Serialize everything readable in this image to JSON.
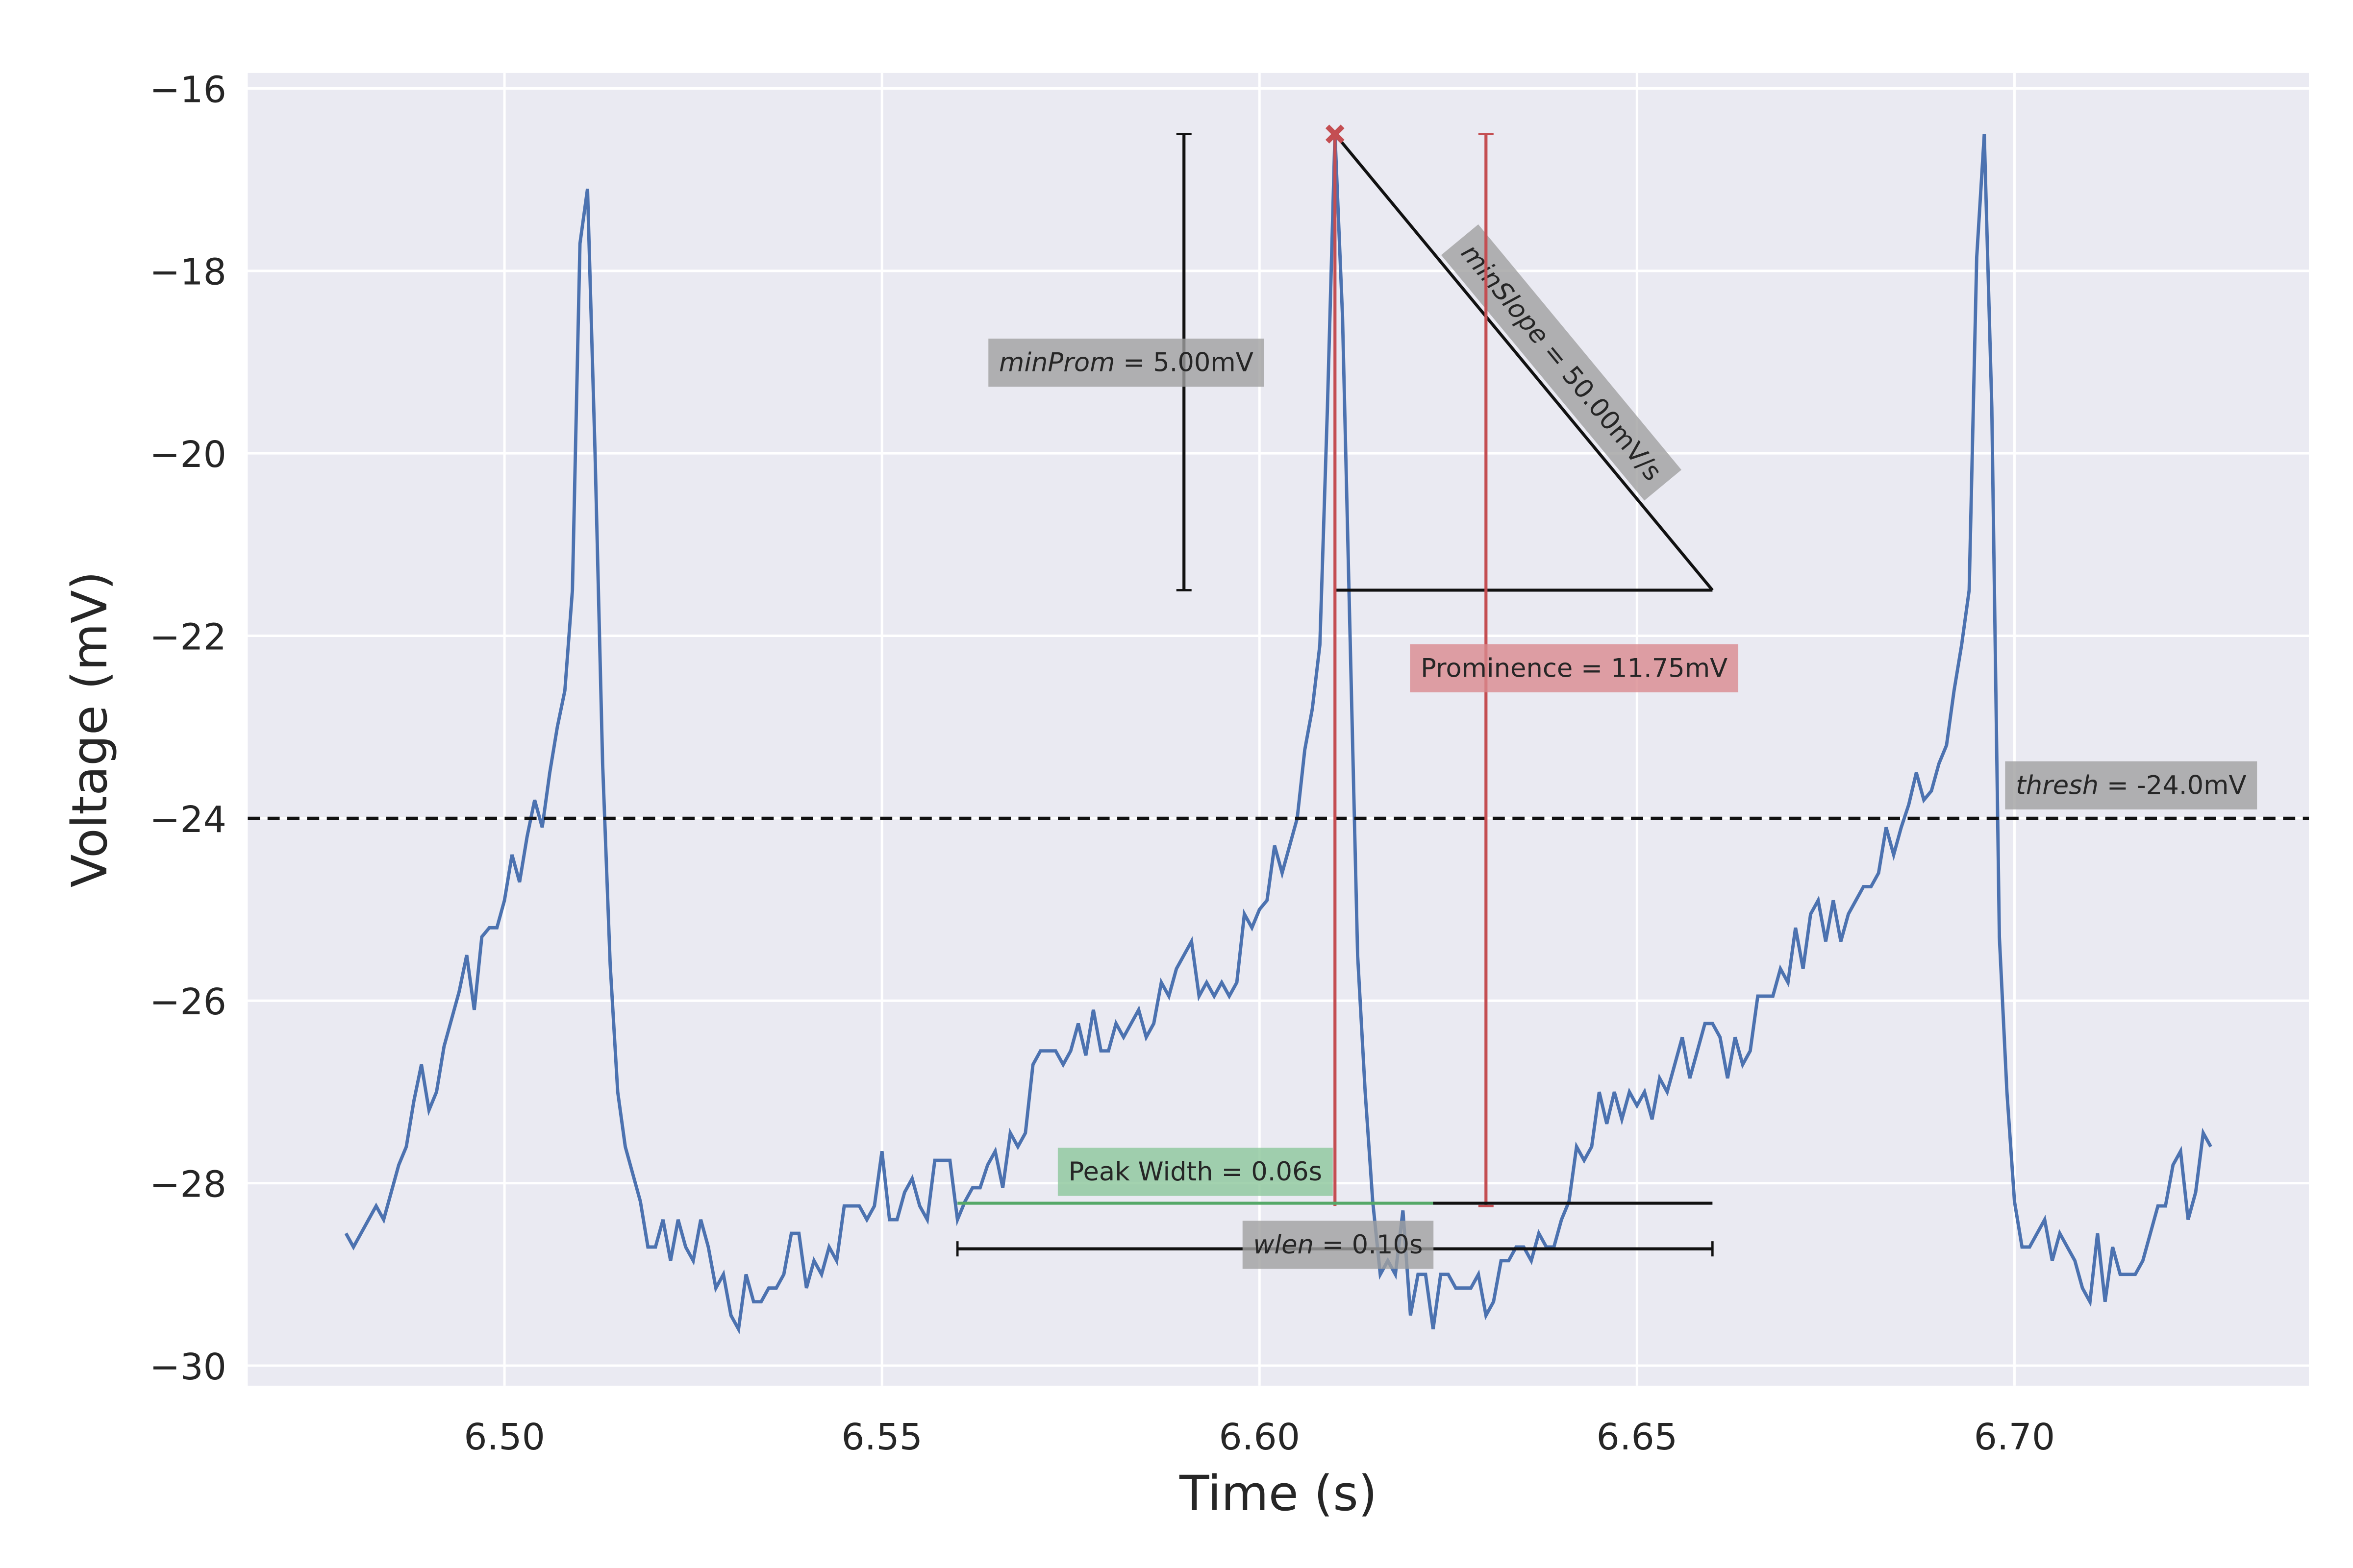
{
  "chart_data": {
    "type": "line",
    "xlabel": "Time (s)",
    "ylabel": "Voltage (mV)",
    "xlim": [
      6.466,
      6.739
    ],
    "ylim": [
      -30.22,
      -15.83
    ],
    "xticks": [
      {
        "value": 6.5,
        "label": "6.50"
      },
      {
        "value": 6.55,
        "label": "6.55"
      },
      {
        "value": 6.6,
        "label": "6.60"
      },
      {
        "value": 6.65,
        "label": "6.65"
      },
      {
        "value": 6.7,
        "label": "6.70"
      }
    ],
    "yticks": [
      {
        "value": -30,
        "label": "−30"
      },
      {
        "value": -28,
        "label": "−28"
      },
      {
        "value": -26,
        "label": "−26"
      },
      {
        "value": -24,
        "label": "−24"
      },
      {
        "value": -22,
        "label": "−22"
      },
      {
        "value": -20,
        "label": "−20"
      },
      {
        "value": -18,
        "label": "−18"
      },
      {
        "value": -16,
        "label": "−16"
      }
    ],
    "grid": true,
    "x": [
      6.479,
      6.48,
      6.481,
      6.482,
      6.483,
      6.484,
      6.485,
      6.486,
      6.487,
      6.488,
      6.489,
      6.49,
      6.491,
      6.492,
      6.493,
      6.494,
      6.495,
      6.496,
      6.497,
      6.498,
      6.499,
      6.5,
      6.501,
      6.502,
      6.503,
      6.504,
      6.505,
      6.506,
      6.507,
      6.508,
      6.509,
      6.51,
      6.511,
      6.512,
      6.513,
      6.514,
      6.515,
      6.516,
      6.517,
      6.518,
      6.519,
      6.52,
      6.521,
      6.522,
      6.523,
      6.524,
      6.525,
      6.526,
      6.527,
      6.528,
      6.529,
      6.53,
      6.531,
      6.532,
      6.533,
      6.534,
      6.535,
      6.536,
      6.537,
      6.538,
      6.539,
      6.54,
      6.541,
      6.542,
      6.543,
      6.544,
      6.545,
      6.546,
      6.547,
      6.548,
      6.549,
      6.55,
      6.551,
      6.552,
      6.553,
      6.554,
      6.555,
      6.556,
      6.557,
      6.558,
      6.559,
      6.56,
      6.561,
      6.562,
      6.563,
      6.564,
      6.565,
      6.566,
      6.567,
      6.568,
      6.569,
      6.57,
      6.571,
      6.572,
      6.573,
      6.574,
      6.575,
      6.576,
      6.577,
      6.578,
      6.579,
      6.58,
      6.581,
      6.582,
      6.583,
      6.584,
      6.585,
      6.586,
      6.587,
      6.588,
      6.589,
      6.59,
      6.591,
      6.592,
      6.593,
      6.594,
      6.595,
      6.596,
      6.597,
      6.598,
      6.599,
      6.6,
      6.601,
      6.602,
      6.603,
      6.604,
      6.605,
      6.606,
      6.607,
      6.608,
      6.609,
      6.61,
      6.611,
      6.612,
      6.613,
      6.614,
      6.615,
      6.616,
      6.617,
      6.618,
      6.619,
      6.62,
      6.621,
      6.622,
      6.623,
      6.624,
      6.625,
      6.626,
      6.627,
      6.628,
      6.629,
      6.63,
      6.631,
      6.632,
      6.633,
      6.634,
      6.635,
      6.636,
      6.637,
      6.638,
      6.639,
      6.64,
      6.641,
      6.642,
      6.643,
      6.644,
      6.645,
      6.646,
      6.647,
      6.648,
      6.649,
      6.65,
      6.651,
      6.652,
      6.653,
      6.654,
      6.655,
      6.656,
      6.657,
      6.658,
      6.659,
      6.66,
      6.661,
      6.662,
      6.663,
      6.664,
      6.665,
      6.666,
      6.667,
      6.668,
      6.669,
      6.67,
      6.671,
      6.672,
      6.673,
      6.674,
      6.675,
      6.676,
      6.677,
      6.678,
      6.679,
      6.68,
      6.681,
      6.682,
      6.683,
      6.684,
      6.685,
      6.686,
      6.687,
      6.688,
      6.689,
      6.69,
      6.691,
      6.692,
      6.693,
      6.694,
      6.695,
      6.696,
      6.697,
      6.698,
      6.699,
      6.7,
      6.701,
      6.702,
      6.703,
      6.704,
      6.705,
      6.706,
      6.707,
      6.708,
      6.709,
      6.71,
      6.711,
      6.712,
      6.713,
      6.714,
      6.715,
      6.716,
      6.717,
      6.718,
      6.719,
      6.72,
      6.721,
      6.722,
      6.723,
      6.724,
      6.725,
      6.726
    ],
    "series": [
      {
        "color": "#4c72b0",
        "values": [
          -28.55,
          -28.7,
          -28.55,
          -28.4,
          -28.25,
          -28.4,
          -28.1,
          -27.8,
          -27.6,
          -27.1,
          -26.7,
          -27.2,
          -27.0,
          -26.5,
          -26.2,
          -25.9,
          -25.5,
          -26.1,
          -25.3,
          -25.2,
          -25.2,
          -24.9,
          -24.4,
          -24.7,
          -24.2,
          -23.8,
          -24.1,
          -23.5,
          -23.0,
          -22.6,
          -21.5,
          -17.7,
          -17.1,
          -20.0,
          -23.4,
          -25.6,
          -27.0,
          -27.6,
          -27.9,
          -28.2,
          -28.7,
          -28.7,
          -28.4,
          -28.85,
          -28.4,
          -28.7,
          -28.85,
          -28.4,
          -28.7,
          -29.15,
          -29.0,
          -29.45,
          -29.6,
          -29.0,
          -29.3,
          -29.3,
          -29.15,
          -29.15,
          -29.0,
          -28.55,
          -28.55,
          -29.15,
          -28.85,
          -29.0,
          -28.7,
          -28.85,
          -28.25,
          -28.25,
          -28.25,
          -28.4,
          -28.25,
          -27.65,
          -28.4,
          -28.4,
          -28.1,
          -27.95,
          -28.25,
          -28.4,
          -27.75,
          -27.75,
          -27.75,
          -28.4,
          -28.2,
          -28.05,
          -28.05,
          -27.8,
          -27.65,
          -28.05,
          -27.45,
          -27.6,
          -27.45,
          -26.7,
          -26.55,
          -26.55,
          -26.55,
          -26.7,
          -26.55,
          -26.25,
          -26.6,
          -26.1,
          -26.55,
          -26.55,
          -26.25,
          -26.4,
          -26.25,
          -26.1,
          -26.4,
          -26.25,
          -25.8,
          -25.95,
          -25.65,
          -25.5,
          -25.35,
          -25.95,
          -25.8,
          -25.95,
          -25.8,
          -25.95,
          -25.8,
          -25.05,
          -25.2,
          -25.0,
          -24.9,
          -24.3,
          -24.6,
          -24.3,
          -24.0,
          -23.25,
          -22.8,
          -22.1,
          -19.5,
          -16.5,
          -18.5,
          -22.0,
          -25.5,
          -27.0,
          -28.2,
          -29.0,
          -28.85,
          -29.0,
          -28.3,
          -29.45,
          -29.0,
          -29.0,
          -29.6,
          -29.0,
          -29.0,
          -29.15,
          -29.15,
          -29.15,
          -29.0,
          -29.45,
          -29.3,
          -28.85,
          -28.85,
          -28.7,
          -28.7,
          -28.85,
          -28.55,
          -28.7,
          -28.7,
          -28.4,
          -28.2,
          -27.6,
          -27.75,
          -27.6,
          -27.0,
          -27.35,
          -27.0,
          -27.3,
          -27.0,
          -27.15,
          -27.0,
          -27.3,
          -26.85,
          -27.0,
          -26.7,
          -26.4,
          -26.85,
          -26.55,
          -26.25,
          -26.25,
          -26.4,
          -26.85,
          -26.4,
          -26.7,
          -26.55,
          -25.95,
          -25.95,
          -25.95,
          -25.65,
          -25.8,
          -25.2,
          -25.65,
          -25.05,
          -24.9,
          -25.35,
          -24.9,
          -25.35,
          -25.05,
          -24.9,
          -24.75,
          -24.75,
          -24.6,
          -24.1,
          -24.4,
          -24.1,
          -23.85,
          -23.5,
          -23.8,
          -23.7,
          -23.4,
          -23.2,
          -22.6,
          -22.1,
          -21.5,
          -17.85,
          -16.5,
          -19.5,
          -25.3,
          -27.0,
          -28.2,
          -28.7,
          -28.7,
          -28.55,
          -28.4,
          -28.85,
          -28.55,
          -28.7,
          -28.85,
          -29.15,
          -29.3,
          -28.55,
          -29.3,
          -28.7,
          -29.0,
          -29.0,
          -29.0,
          -28.85,
          -28.55,
          -28.25,
          -28.25,
          -27.8,
          -27.65,
          -28.4,
          -28.1,
          -27.45,
          -27.6
        ]
      }
    ],
    "threshold": {
      "value": -24,
      "label_name": "thresh",
      "label_value": "= -24.0mV"
    },
    "peak": {
      "x": 6.61,
      "y": -16.5,
      "color": "#c44e52"
    },
    "min_prominence": {
      "x": 6.59,
      "top": -16.5,
      "bottom": -21.5,
      "label_name": "minProm",
      "label_value": "= 5.00mV"
    },
    "min_slope": {
      "x": [
        6.61,
        6.66
      ],
      "y": [
        -16.5,
        -21.5
      ],
      "label_name": "minSlope",
      "label_value": "= 50.00mV/s"
    },
    "prominence": {
      "x": 6.63,
      "top": -16.5,
      "bottom": -28.25,
      "color": "#c44e52",
      "label": "Prominence = 11.75mV"
    },
    "peak_width": {
      "x": [
        6.56,
        6.623
      ],
      "y": -28.22,
      "color": "#55a868",
      "label": "Peak Width = 0.06s"
    },
    "wlen": {
      "x": [
        6.56,
        6.66
      ],
      "y": -28.72,
      "label_name": "wlen",
      "label_value": "= 0.10s"
    }
  }
}
